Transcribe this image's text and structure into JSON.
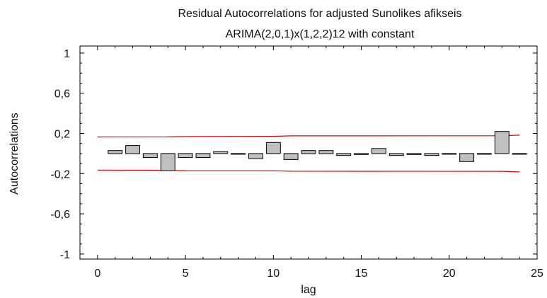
{
  "chart_data": {
    "type": "bar",
    "title": "Residual Autocorrelations for adjusted Sunolikes afikseis",
    "subtitle": "ARIMA(2,0,1)x(1,2,2)12 with constant",
    "xlabel": "lag",
    "ylabel": "Autocorrelations",
    "xlim": [
      -1,
      25
    ],
    "ylim": [
      -1.05,
      1.07
    ],
    "xticks": [
      0,
      5,
      10,
      15,
      20,
      25
    ],
    "xtick_labels": [
      "0",
      "5",
      "10",
      "15",
      "20",
      "25"
    ],
    "yticks": [
      -1,
      -0.6,
      -0.2,
      0.2,
      0.6,
      1
    ],
    "ytick_labels": [
      "-1",
      "-0,6",
      "-0,2",
      "0,2",
      "0,6",
      "1"
    ],
    "lags": [
      1,
      2,
      3,
      4,
      5,
      6,
      7,
      8,
      9,
      10,
      11,
      12,
      13,
      14,
      15,
      16,
      17,
      18,
      19,
      20,
      21,
      22,
      23,
      24
    ],
    "values": [
      0.03,
      0.08,
      -0.04,
      -0.17,
      -0.04,
      -0.04,
      0.02,
      0.0,
      -0.05,
      0.11,
      -0.06,
      0.03,
      0.03,
      -0.02,
      -0.01,
      0.05,
      -0.02,
      -0.01,
      -0.02,
      0.0,
      -0.08,
      0.0,
      0.22,
      0.0
    ],
    "confidence_band": {
      "color": "#e00000",
      "upper": [
        [
          0,
          0.165
        ],
        [
          4,
          0.166
        ],
        [
          5,
          0.17
        ],
        [
          10,
          0.171
        ],
        [
          11,
          0.176
        ],
        [
          23,
          0.177
        ],
        [
          24,
          0.183
        ]
      ],
      "lower": [
        [
          0,
          -0.165
        ],
        [
          4,
          -0.166
        ],
        [
          5,
          -0.17
        ],
        [
          10,
          -0.171
        ],
        [
          11,
          -0.176
        ],
        [
          23,
          -0.177
        ],
        [
          24,
          -0.183
        ]
      ]
    },
    "bar_fill": "#c0c0c0",
    "bar_stroke": "#000000",
    "grid": false,
    "legend": "none"
  }
}
